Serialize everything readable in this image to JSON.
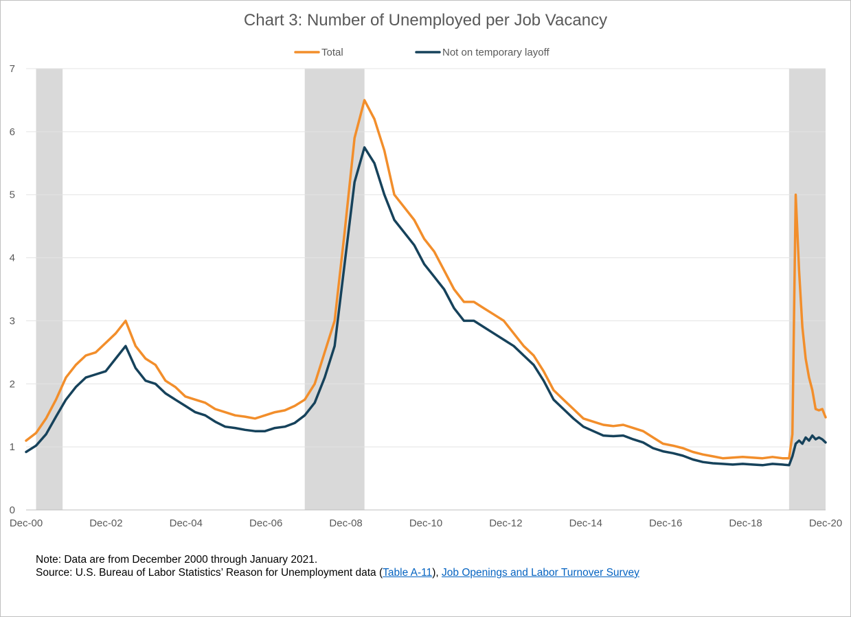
{
  "chart_data": {
    "type": "line",
    "title": "Chart 3: Number of Unemployed per Job Vacancy",
    "xlabel": "",
    "ylabel": "",
    "ylim": [
      0,
      7
    ],
    "yticks": [
      "0",
      "1",
      "2",
      "3",
      "4",
      "5",
      "6",
      "7"
    ],
    "xticks": [
      "Dec-00",
      "Dec-02",
      "Dec-04",
      "Dec-06",
      "Dec-08",
      "Dec-10",
      "Dec-12",
      "Dec-14",
      "Dec-16",
      "Dec-18",
      "Dec-20"
    ],
    "x_range": [
      "2000-12",
      "2021-01"
    ],
    "grid": "horizontal",
    "legend_position": "top-center",
    "recessions": [
      [
        "2001-03",
        "2001-11"
      ],
      [
        "2007-12",
        "2009-06"
      ],
      [
        "2020-02",
        "2021-01"
      ]
    ],
    "series": [
      {
        "name": "Total",
        "color": "#f28e2b",
        "points": [
          [
            "2000-12",
            1.1
          ],
          [
            "2001-03",
            1.22
          ],
          [
            "2001-06",
            1.45
          ],
          [
            "2001-09",
            1.75
          ],
          [
            "2001-12",
            2.1
          ],
          [
            "2002-03",
            2.3
          ],
          [
            "2002-06",
            2.45
          ],
          [
            "2002-09",
            2.5
          ],
          [
            "2002-12",
            2.65
          ],
          [
            "2003-03",
            2.8
          ],
          [
            "2003-06",
            3.0
          ],
          [
            "2003-09",
            2.6
          ],
          [
            "2003-12",
            2.4
          ],
          [
            "2004-03",
            2.3
          ],
          [
            "2004-06",
            2.05
          ],
          [
            "2004-09",
            1.95
          ],
          [
            "2004-12",
            1.8
          ],
          [
            "2005-03",
            1.75
          ],
          [
            "2005-06",
            1.7
          ],
          [
            "2005-09",
            1.6
          ],
          [
            "2005-12",
            1.55
          ],
          [
            "2006-03",
            1.5
          ],
          [
            "2006-06",
            1.48
          ],
          [
            "2006-09",
            1.45
          ],
          [
            "2006-12",
            1.5
          ],
          [
            "2007-03",
            1.55
          ],
          [
            "2007-06",
            1.58
          ],
          [
            "2007-09",
            1.65
          ],
          [
            "2007-12",
            1.75
          ],
          [
            "2008-03",
            2.0
          ],
          [
            "2008-06",
            2.5
          ],
          [
            "2008-09",
            3.0
          ],
          [
            "2008-12",
            4.4
          ],
          [
            "2009-03",
            5.9
          ],
          [
            "2009-06",
            6.5
          ],
          [
            "2009-09",
            6.2
          ],
          [
            "2009-12",
            5.7
          ],
          [
            "2010-03",
            5.0
          ],
          [
            "2010-06",
            4.8
          ],
          [
            "2010-09",
            4.6
          ],
          [
            "2010-12",
            4.3
          ],
          [
            "2011-03",
            4.1
          ],
          [
            "2011-06",
            3.8
          ],
          [
            "2011-09",
            3.5
          ],
          [
            "2011-12",
            3.3
          ],
          [
            "2012-03",
            3.3
          ],
          [
            "2012-06",
            3.2
          ],
          [
            "2012-09",
            3.1
          ],
          [
            "2012-12",
            3.0
          ],
          [
            "2013-03",
            2.8
          ],
          [
            "2013-06",
            2.6
          ],
          [
            "2013-09",
            2.45
          ],
          [
            "2013-12",
            2.2
          ],
          [
            "2014-03",
            1.9
          ],
          [
            "2014-06",
            1.75
          ],
          [
            "2014-09",
            1.6
          ],
          [
            "2014-12",
            1.45
          ],
          [
            "2015-03",
            1.4
          ],
          [
            "2015-06",
            1.35
          ],
          [
            "2015-09",
            1.33
          ],
          [
            "2015-12",
            1.35
          ],
          [
            "2016-03",
            1.3
          ],
          [
            "2016-06",
            1.25
          ],
          [
            "2016-09",
            1.15
          ],
          [
            "2016-12",
            1.05
          ],
          [
            "2017-03",
            1.02
          ],
          [
            "2017-06",
            0.98
          ],
          [
            "2017-09",
            0.92
          ],
          [
            "2017-12",
            0.88
          ],
          [
            "2018-03",
            0.85
          ],
          [
            "2018-06",
            0.82
          ],
          [
            "2018-09",
            0.83
          ],
          [
            "2018-12",
            0.84
          ],
          [
            "2019-03",
            0.83
          ],
          [
            "2019-06",
            0.82
          ],
          [
            "2019-09",
            0.84
          ],
          [
            "2019-12",
            0.82
          ],
          [
            "2020-02",
            0.82
          ],
          [
            "2020-03",
            1.2
          ],
          [
            "2020-04",
            5.0
          ],
          [
            "2020-05",
            3.8
          ],
          [
            "2020-06",
            2.9
          ],
          [
            "2020-07",
            2.4
          ],
          [
            "2020-08",
            2.1
          ],
          [
            "2020-09",
            1.9
          ],
          [
            "2020-10",
            1.6
          ],
          [
            "2020-11",
            1.58
          ],
          [
            "2020-12",
            1.6
          ],
          [
            "2021-01",
            1.47
          ]
        ]
      },
      {
        "name": "Not on temporary layoff",
        "color": "#16425b",
        "points": [
          [
            "2000-12",
            0.92
          ],
          [
            "2001-03",
            1.02
          ],
          [
            "2001-06",
            1.2
          ],
          [
            "2001-09",
            1.48
          ],
          [
            "2001-12",
            1.75
          ],
          [
            "2002-03",
            1.95
          ],
          [
            "2002-06",
            2.1
          ],
          [
            "2002-09",
            2.15
          ],
          [
            "2002-12",
            2.2
          ],
          [
            "2003-03",
            2.4
          ],
          [
            "2003-06",
            2.6
          ],
          [
            "2003-09",
            2.25
          ],
          [
            "2003-12",
            2.05
          ],
          [
            "2004-03",
            2.0
          ],
          [
            "2004-06",
            1.85
          ],
          [
            "2004-09",
            1.75
          ],
          [
            "2004-12",
            1.65
          ],
          [
            "2005-03",
            1.55
          ],
          [
            "2005-06",
            1.5
          ],
          [
            "2005-09",
            1.4
          ],
          [
            "2005-12",
            1.32
          ],
          [
            "2006-03",
            1.3
          ],
          [
            "2006-06",
            1.27
          ],
          [
            "2006-09",
            1.25
          ],
          [
            "2006-12",
            1.25
          ],
          [
            "2007-03",
            1.3
          ],
          [
            "2007-06",
            1.32
          ],
          [
            "2007-09",
            1.38
          ],
          [
            "2007-12",
            1.5
          ],
          [
            "2008-03",
            1.7
          ],
          [
            "2008-06",
            2.1
          ],
          [
            "2008-09",
            2.6
          ],
          [
            "2008-12",
            3.9
          ],
          [
            "2009-03",
            5.2
          ],
          [
            "2009-06",
            5.75
          ],
          [
            "2009-09",
            5.5
          ],
          [
            "2009-12",
            5.0
          ],
          [
            "2010-03",
            4.6
          ],
          [
            "2010-06",
            4.4
          ],
          [
            "2010-09",
            4.2
          ],
          [
            "2010-12",
            3.9
          ],
          [
            "2011-03",
            3.7
          ],
          [
            "2011-06",
            3.5
          ],
          [
            "2011-09",
            3.2
          ],
          [
            "2011-12",
            3.0
          ],
          [
            "2012-03",
            3.0
          ],
          [
            "2012-06",
            2.9
          ],
          [
            "2012-09",
            2.8
          ],
          [
            "2012-12",
            2.7
          ],
          [
            "2013-03",
            2.6
          ],
          [
            "2013-06",
            2.45
          ],
          [
            "2013-09",
            2.3
          ],
          [
            "2013-12",
            2.05
          ],
          [
            "2014-03",
            1.75
          ],
          [
            "2014-06",
            1.6
          ],
          [
            "2014-09",
            1.45
          ],
          [
            "2014-12",
            1.32
          ],
          [
            "2015-03",
            1.25
          ],
          [
            "2015-06",
            1.18
          ],
          [
            "2015-09",
            1.17
          ],
          [
            "2015-12",
            1.18
          ],
          [
            "2016-03",
            1.12
          ],
          [
            "2016-06",
            1.07
          ],
          [
            "2016-09",
            0.98
          ],
          [
            "2016-12",
            0.93
          ],
          [
            "2017-03",
            0.9
          ],
          [
            "2017-06",
            0.86
          ],
          [
            "2017-09",
            0.8
          ],
          [
            "2017-12",
            0.76
          ],
          [
            "2018-03",
            0.74
          ],
          [
            "2018-06",
            0.73
          ],
          [
            "2018-09",
            0.72
          ],
          [
            "2018-12",
            0.73
          ],
          [
            "2019-03",
            0.72
          ],
          [
            "2019-06",
            0.71
          ],
          [
            "2019-09",
            0.73
          ],
          [
            "2019-12",
            0.72
          ],
          [
            "2020-02",
            0.71
          ],
          [
            "2020-03",
            0.85
          ],
          [
            "2020-04",
            1.05
          ],
          [
            "2020-05",
            1.1
          ],
          [
            "2020-06",
            1.05
          ],
          [
            "2020-07",
            1.15
          ],
          [
            "2020-08",
            1.1
          ],
          [
            "2020-09",
            1.18
          ],
          [
            "2020-10",
            1.12
          ],
          [
            "2020-11",
            1.15
          ],
          [
            "2020-12",
            1.12
          ],
          [
            "2021-01",
            1.07
          ]
        ]
      }
    ]
  },
  "notes": {
    "note": "Note: Data are from December 2000 through January 2021.",
    "source_prefix": "Source: U.S. Bureau of Labor Statistics’ Reason for Unemployment data (",
    "link1": "Table A-11",
    "source_mid": "), ",
    "link2": "Job Openings and Labor Turnover Survey"
  }
}
